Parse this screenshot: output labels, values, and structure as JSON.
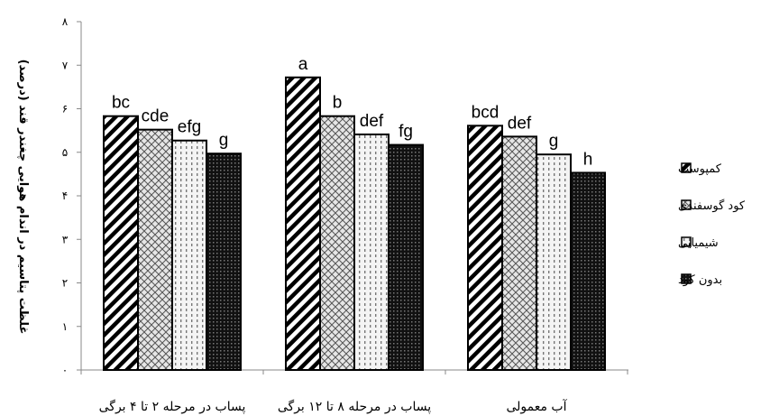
{
  "chart_data": {
    "type": "bar",
    "title": "",
    "xlabel": "",
    "ylabel": "غلظت پتاسیم در اندام هوایی چغندر قند (درصد)",
    "ylim": [
      0,
      8
    ],
    "yticks": [
      "۰",
      "۱",
      "۲",
      "۳",
      "۴",
      "۵",
      "۶",
      "۷",
      "۸"
    ],
    "categories": [
      "پساب در مرحله ۲ تا ۴ برگی",
      "پساب در مرحله ۸ تا ۱۲ برگی",
      "آب معمولی"
    ],
    "series": [
      {
        "name": "کمپوست",
        "values": [
          5.83,
          6.72,
          5.61
        ],
        "letters": [
          "bc",
          "a",
          "bcd"
        ]
      },
      {
        "name": "کود گوسفندی",
        "values": [
          5.52,
          5.83,
          5.36
        ],
        "letters": [
          "cde",
          "b",
          "def"
        ]
      },
      {
        "name": "شیمیایی",
        "values": [
          5.27,
          5.41,
          4.95
        ],
        "letters": [
          "efg",
          "def",
          "g"
        ]
      },
      {
        "name": "بدون کود",
        "values": [
          4.97,
          5.17,
          4.53
        ],
        "letters": [
          "g",
          "fg",
          "h"
        ]
      }
    ],
    "legend_position": "right",
    "grid": false,
    "patterns": [
      "wide-diagonal-stripes",
      "crosshatch",
      "dotted-vertical",
      "dark-dots"
    ]
  }
}
